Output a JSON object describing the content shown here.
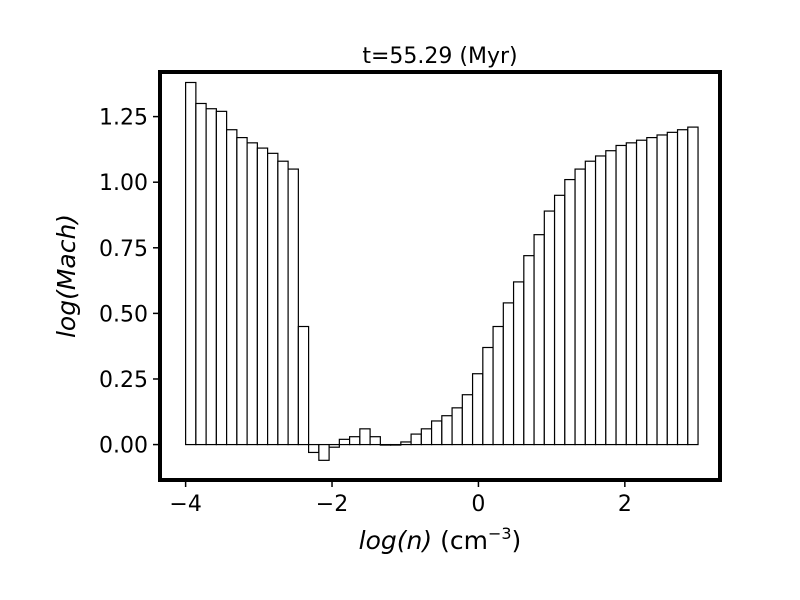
{
  "chart_data": {
    "type": "bar",
    "title": "t=55.29 (Myr)",
    "xlabel": {
      "italic": "log(n)",
      "unit": "(cm",
      "exponent": "−3",
      "close": ")"
    },
    "ylabel": "log(Mach)",
    "xlim": [
      -4.35,
      3.3
    ],
    "ylim": [
      -0.135,
      1.42
    ],
    "xticks": [
      -4,
      -2,
      0,
      2
    ],
    "xtick_labels": [
      "−4",
      "−2",
      "0",
      "2"
    ],
    "yticks": [
      0.0,
      0.25,
      0.5,
      0.75,
      1.0,
      1.25
    ],
    "ytick_labels": [
      "0.00",
      "0.25",
      "0.50",
      "0.75",
      "1.00",
      "1.25"
    ],
    "grid": false,
    "bin_start": -4.0,
    "bin_width": 0.14,
    "values": [
      1.38,
      1.3,
      1.28,
      1.27,
      1.2,
      1.17,
      1.15,
      1.13,
      1.11,
      1.08,
      1.05,
      0.45,
      -0.03,
      -0.06,
      -0.01,
      0.02,
      0.03,
      0.06,
      0.03,
      0.0,
      0.0,
      0.01,
      0.04,
      0.06,
      0.09,
      0.11,
      0.14,
      0.19,
      0.27,
      0.37,
      0.45,
      0.54,
      0.62,
      0.72,
      0.8,
      0.89,
      0.95,
      1.01,
      1.05,
      1.08,
      1.1,
      1.12,
      1.14,
      1.15,
      1.16,
      1.17,
      1.18,
      1.19,
      1.2,
      1.21
    ]
  }
}
